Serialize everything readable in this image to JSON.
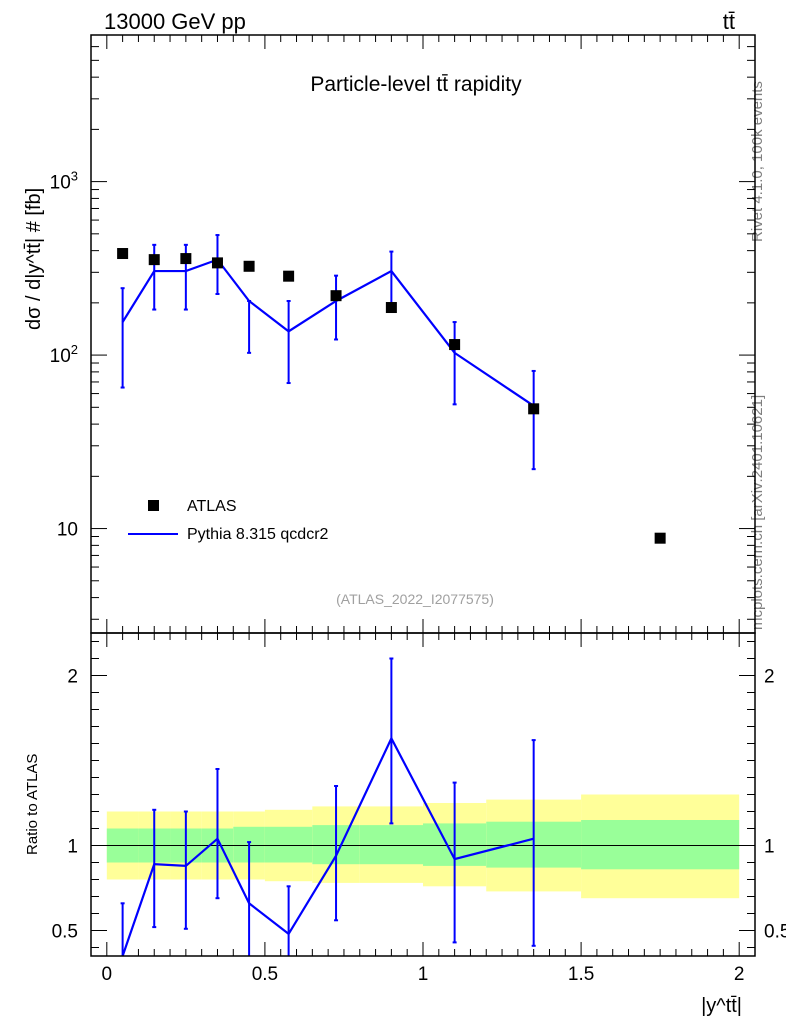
{
  "header": {
    "energy_label": "13000 GeV pp",
    "process_label": "tt̄"
  },
  "side_text": {
    "rivet": "Rivet 4.1.0,  100k events",
    "mcplots": "mcplots.cern.ch [arXiv:2401.10621]"
  },
  "chart_data": [
    {
      "type": "scatter",
      "title": "Particle-level tt̄ rapidity",
      "analysis_label": "(ATLAS_2022_I2077575)",
      "ylabel": "dσ / d|y^tt̄| # [fb]",
      "xlabel": "|y^tt̄|",
      "xlim": [
        -0.05,
        2.05
      ],
      "ylim": [
        2.5,
        7000
      ],
      "yscale": "log",
      "ytick_labels": [
        "10",
        "10^2",
        "10^3"
      ],
      "legend": [
        "ATLAS",
        "Pythia 8.315 qcdcr2"
      ],
      "legend_position": "lower-left",
      "series": [
        {
          "name": "ATLAS",
          "style": "markers",
          "color": "#000000",
          "x": [
            0.05,
            0.15,
            0.25,
            0.35,
            0.45,
            0.575,
            0.725,
            0.9,
            1.1,
            1.35,
            1.75
          ],
          "y": [
            385,
            355,
            360,
            340,
            325,
            285,
            220,
            188,
            115,
            49,
            8.8
          ]
        },
        {
          "name": "Pythia 8.315 qcdcr2",
          "style": "line",
          "color": "#0000ff",
          "x": [
            0.05,
            0.15,
            0.25,
            0.35,
            0.45,
            0.575,
            0.725,
            0.9,
            1.1,
            1.35
          ],
          "y": [
            155,
            305,
            305,
            355,
            205,
            137,
            205,
            305,
            103,
            51
          ],
          "err_lo": [
            65,
            183,
            183,
            225,
            103,
            69,
            123,
            183,
            52,
            22
          ],
          "err_hi": [
            243,
            432,
            432,
            492,
            205,
            205,
            287,
            395,
            155,
            81
          ]
        }
      ]
    },
    {
      "type": "line",
      "ylabel": "Ratio to ATLAS",
      "xlabel": "|y^tt̄|",
      "xlim": [
        -0.05,
        2.05
      ],
      "ylim": [
        0.35,
        2.25
      ],
      "ytick_labels": [
        "0.5",
        "1",
        "2"
      ],
      "xtick_labels": [
        "0",
        "0.5",
        "1",
        "1.5",
        "2"
      ],
      "reference_line": 1.0,
      "bands": {
        "bin_edges": [
          0.0,
          0.1,
          0.2,
          0.3,
          0.4,
          0.5,
          0.65,
          0.8,
          1.0,
          1.2,
          1.5,
          2.0
        ],
        "stat_lo": [
          0.9,
          0.9,
          0.9,
          0.9,
          0.9,
          0.9,
          0.89,
          0.89,
          0.88,
          0.87,
          0.86
        ],
        "stat_hi": [
          1.1,
          1.1,
          1.1,
          1.1,
          1.11,
          1.11,
          1.12,
          1.12,
          1.13,
          1.14,
          1.15
        ],
        "total_lo": [
          0.8,
          0.8,
          0.8,
          0.8,
          0.8,
          0.79,
          0.78,
          0.78,
          0.76,
          0.73,
          0.69
        ],
        "total_hi": [
          1.2,
          1.2,
          1.2,
          1.2,
          1.2,
          1.21,
          1.23,
          1.23,
          1.25,
          1.27,
          1.3
        ],
        "stat_color": "#99ff99",
        "total_color": "#ffff99"
      },
      "series": [
        {
          "name": "Pythia 8.315 qcdcr2 / ATLAS",
          "color": "#0000ff",
          "x": [
            0.05,
            0.15,
            0.25,
            0.35,
            0.45,
            0.575,
            0.725,
            0.9,
            1.1,
            1.35
          ],
          "y": [
            0.34,
            0.89,
            0.88,
            1.04,
            0.66,
            0.48,
            0.94,
            1.63,
            0.92,
            1.04
          ],
          "err_lo": [
            0.2,
            0.52,
            0.51,
            0.69,
            0.3,
            0.25,
            0.56,
            1.13,
            0.43,
            0.41
          ],
          "err_hi": [
            0.66,
            1.21,
            1.2,
            1.45,
            1.02,
            0.76,
            1.35,
            2.1,
            1.37,
            1.62
          ]
        }
      ]
    }
  ]
}
